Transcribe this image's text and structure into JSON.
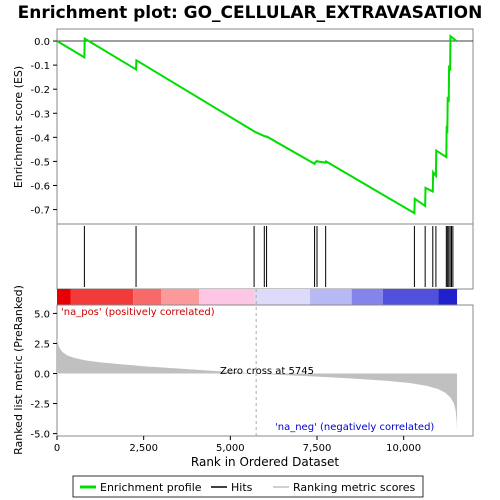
{
  "chart_data": {
    "type": "line",
    "title": "Enrichment plot: GO_CELLULAR_EXTRAVASATION",
    "panels": {
      "enrichment": {
        "ylabel": "Enrichment score (ES)",
        "ylim": [
          -0.76,
          0.05
        ],
        "yticks": [
          0.0,
          -0.1,
          -0.2,
          -0.3,
          -0.4,
          -0.5,
          -0.6,
          -0.7
        ],
        "ytick_labels": [
          "0.0",
          "-0.1",
          "-0.2",
          "-0.3",
          "-0.4",
          "-0.5",
          "-0.6",
          "-0.7"
        ],
        "line_color": "#00dd00",
        "series": [
          {
            "name": "Enrichment profile",
            "x": [
              0,
              790,
              800,
              2280,
              2290,
              5685,
              5695,
              5980,
              5990,
              6045,
              6055,
              7430,
              7440,
              7500,
              7510,
              7750,
              7760,
              10310,
              10320,
              10620,
              10630,
              10840,
              10850,
              10930,
              10940,
              11230,
              11240,
              11260,
              11270,
              11300,
              11310,
              11340,
              11350,
              11520
            ],
            "y": [
              0.0,
              -0.068,
              0.01,
              -0.118,
              -0.08,
              -0.375,
              -0.376,
              -0.395,
              -0.395,
              -0.398,
              -0.397,
              -0.51,
              -0.505,
              -0.498,
              -0.5,
              -0.505,
              -0.5,
              -0.715,
              -0.655,
              -0.685,
              -0.61,
              -0.625,
              -0.545,
              -0.56,
              -0.455,
              -0.482,
              -0.365,
              -0.37,
              -0.24,
              -0.245,
              -0.11,
              -0.115,
              0.02,
              0.0
            ]
          }
        ]
      },
      "hits": {
        "positions": [
          790,
          2280,
          5685,
          5980,
          6045,
          7430,
          7500,
          7750,
          10310,
          10620,
          10840,
          10930,
          11230,
          11260,
          11300,
          11340,
          11380,
          11420
        ]
      },
      "colorbar": {
        "segments": [
          {
            "from": 0,
            "to": 400,
            "color": "#e80000"
          },
          {
            "from": 400,
            "to": 2200,
            "color": "#f23a3a"
          },
          {
            "from": 2200,
            "to": 3000,
            "color": "#f86a6a"
          },
          {
            "from": 3000,
            "to": 4100,
            "color": "#fb9a9a"
          },
          {
            "from": 4100,
            "to": 5700,
            "color": "#fcc6e4"
          },
          {
            "from": 5700,
            "to": 7300,
            "color": "#dcdcfa"
          },
          {
            "from": 7300,
            "to": 8500,
            "color": "#b8b8f4"
          },
          {
            "from": 8500,
            "to": 9400,
            "color": "#8484ec"
          },
          {
            "from": 9400,
            "to": 11000,
            "color": "#5050dd"
          },
          {
            "from": 11000,
            "to": 11540,
            "color": "#2020cc"
          }
        ]
      },
      "ranked_metric": {
        "ylabel": "Ranked list metric (PreRanked)",
        "xlabel": "Rank in Ordered Dataset",
        "xlim": [
          0,
          12000
        ],
        "ylim": [
          -5.2,
          5.7
        ],
        "xticks": [
          0,
          2500,
          5000,
          7500,
          10000
        ],
        "xtick_labels": [
          "0",
          "2,500",
          "5,000",
          "7,500",
          "10,000"
        ],
        "yticks": [
          5.0,
          2.5,
          0.0,
          -2.5,
          -5.0
        ],
        "ytick_labels": [
          "5.0",
          "2.5",
          "0.0",
          "-2.5",
          "-5.0"
        ],
        "fill_color": "#c0c0c0",
        "curve": {
          "x": [
            0,
            60,
            150,
            300,
            500,
            800,
            1200,
            1800,
            2500,
            3500,
            4500,
            5200,
            5745,
            6500,
            7500,
            8500,
            9500,
            10200,
            10700,
            11000,
            11200,
            11350,
            11450,
            11500,
            11530,
            11540
          ],
          "y": [
            2.9,
            2.2,
            1.8,
            1.5,
            1.3,
            1.1,
            0.95,
            0.78,
            0.6,
            0.42,
            0.22,
            0.1,
            0.0,
            -0.12,
            -0.26,
            -0.42,
            -0.6,
            -0.8,
            -1.05,
            -1.3,
            -1.6,
            -2.0,
            -2.5,
            -3.1,
            -4.0,
            -4.8
          ]
        },
        "zero_cross": 5745,
        "annotations": {
          "pos": "'na_pos' (positively correlated)",
          "neg": "'na_neg' (negatively correlated)",
          "zero": "Zero cross at 5745"
        }
      }
    },
    "legend": {
      "placement": "bottom",
      "entries": [
        {
          "label": "Enrichment profile",
          "color": "#00dd00"
        },
        {
          "label": "Hits",
          "color": "#000000"
        },
        {
          "label": "Ranking metric scores",
          "color": "#c0c0c0"
        }
      ]
    }
  }
}
